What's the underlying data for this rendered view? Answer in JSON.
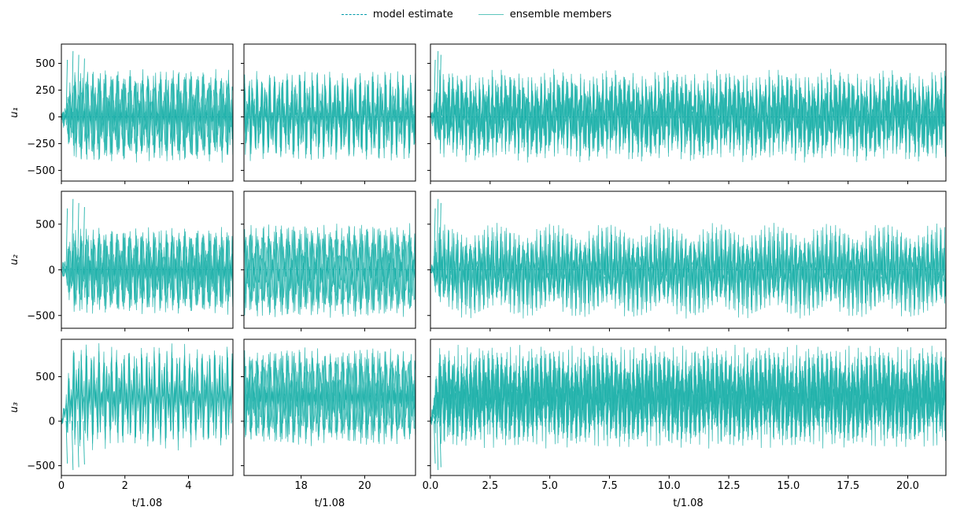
{
  "legend": {
    "placement": "top-center",
    "items": [
      {
        "label": "model estimate",
        "style": "dashed",
        "color": "#009aaa"
      },
      {
        "label": "ensemble members",
        "style": "solid",
        "color": "#5cc6bd"
      }
    ]
  },
  "colors": {
    "ensemble": "#20b2aa",
    "estimate": "#009aaa"
  },
  "chart_data": [
    {
      "type": "line",
      "row": 0,
      "col": 0,
      "ylabel": "u₁",
      "xlabel": "",
      "xlim": [
        0,
        5.4
      ],
      "ylim": [
        -600,
        680
      ],
      "xticks": [
        0,
        2,
        4
      ],
      "xticklabels": [],
      "yticks": [
        -500,
        -250,
        0,
        250,
        500
      ],
      "yticklabels": [
        "−500",
        "−250",
        "0",
        "250",
        "500"
      ],
      "series": [
        {
          "values": "dense oscillation",
          "amplitude_range": [
            -440,
            460
          ],
          "peak": 650
        }
      ]
    },
    {
      "type": "line",
      "row": 0,
      "col": 1,
      "ylabel": "",
      "xlabel": "",
      "xlim": [
        16.2,
        21.6
      ],
      "ylim": [
        -600,
        680
      ],
      "xticks": [
        18,
        20
      ],
      "xticklabels": [],
      "yticks": [
        -500,
        -250,
        0,
        250,
        500
      ],
      "yticklabels": [],
      "series": [
        {
          "values": "dense oscillation",
          "amplitude_range": [
            -440,
            460
          ]
        }
      ]
    },
    {
      "type": "line",
      "row": 0,
      "col": 2,
      "ylabel": "",
      "xlabel": "",
      "xlim": [
        0,
        21.6
      ],
      "ylim": [
        -600,
        680
      ],
      "xticks": [
        0,
        2.5,
        5,
        7.5,
        10,
        12.5,
        15,
        17.5,
        20
      ],
      "xticklabels": [],
      "yticks": [
        -500,
        -250,
        0,
        250,
        500
      ],
      "yticklabels": [],
      "series": [
        {
          "values": "dense oscillation",
          "amplitude_range": [
            -440,
            460
          ],
          "peak": 650
        }
      ]
    },
    {
      "type": "line",
      "row": 1,
      "col": 0,
      "ylabel": "u₂",
      "xlabel": "",
      "xlim": [
        0,
        5.4
      ],
      "ylim": [
        -640,
        860
      ],
      "xticks": [
        0,
        2,
        4
      ],
      "xticklabels": [],
      "yticks": [
        -500,
        0,
        500
      ],
      "yticklabels": [
        "−500",
        "0",
        "500"
      ],
      "series": [
        {
          "values": "dense oscillation",
          "amplitude_range": [
            -540,
            520
          ],
          "peak": 820
        }
      ]
    },
    {
      "type": "line",
      "row": 1,
      "col": 1,
      "ylabel": "",
      "xlabel": "",
      "xlim": [
        16.2,
        21.6
      ],
      "ylim": [
        -640,
        860
      ],
      "xticks": [
        18,
        20
      ],
      "xticklabels": [],
      "yticks": [
        -500,
        0,
        500
      ],
      "yticklabels": [],
      "series": [
        {
          "values": "dense oscillation",
          "amplitude_range": [
            -540,
            520
          ]
        }
      ]
    },
    {
      "type": "line",
      "row": 1,
      "col": 2,
      "ylabel": "",
      "xlabel": "",
      "xlim": [
        0,
        21.6
      ],
      "ylim": [
        -640,
        860
      ],
      "xticks": [
        0,
        2.5,
        5,
        7.5,
        10,
        12.5,
        15,
        17.5,
        20
      ],
      "xticklabels": [],
      "yticks": [
        -500,
        0,
        500
      ],
      "yticklabels": [],
      "series": [
        {
          "values": "dense oscillation",
          "amplitude_range": [
            -540,
            520
          ],
          "peak": 820
        }
      ]
    },
    {
      "type": "line",
      "row": 2,
      "col": 0,
      "ylabel": "u₃",
      "xlabel": "t/1.08",
      "xlim": [
        0,
        5.4
      ],
      "ylim": [
        -610,
        920
      ],
      "xticks": [
        0,
        2,
        4
      ],
      "xticklabels": [
        "0",
        "2",
        "4"
      ],
      "yticks": [
        -500,
        0,
        500
      ],
      "yticklabels": [
        "−500",
        "0",
        "500"
      ],
      "series": [
        {
          "values": "dense oscillation",
          "amplitude_range": [
            -330,
            880
          ],
          "trough": -580
        }
      ]
    },
    {
      "type": "line",
      "row": 2,
      "col": 1,
      "ylabel": "",
      "xlabel": "t/1.08",
      "xlim": [
        16.2,
        21.6
      ],
      "ylim": [
        -610,
        920
      ],
      "xticks": [
        18,
        20
      ],
      "xticklabels": [
        "18",
        "20"
      ],
      "yticks": [
        -500,
        0,
        500
      ],
      "yticklabels": [],
      "series": [
        {
          "values": "dense oscillation",
          "amplitude_range": [
            -330,
            880
          ]
        }
      ]
    },
    {
      "type": "line",
      "row": 2,
      "col": 2,
      "ylabel": "",
      "xlabel": "t/1.08",
      "xlim": [
        0,
        21.6
      ],
      "ylim": [
        -610,
        920
      ],
      "xticks": [
        0,
        2.5,
        5,
        7.5,
        10,
        12.5,
        15,
        17.5,
        20
      ],
      "xticklabels": [
        "0.0",
        "2.5",
        "5.0",
        "7.5",
        "10.0",
        "12.5",
        "15.0",
        "17.5",
        "20.0"
      ],
      "yticks": [
        -500,
        0,
        500
      ],
      "yticklabels": [],
      "series": [
        {
          "values": "dense oscillation",
          "amplitude_range": [
            -330,
            880
          ],
          "trough": -580
        }
      ]
    }
  ]
}
